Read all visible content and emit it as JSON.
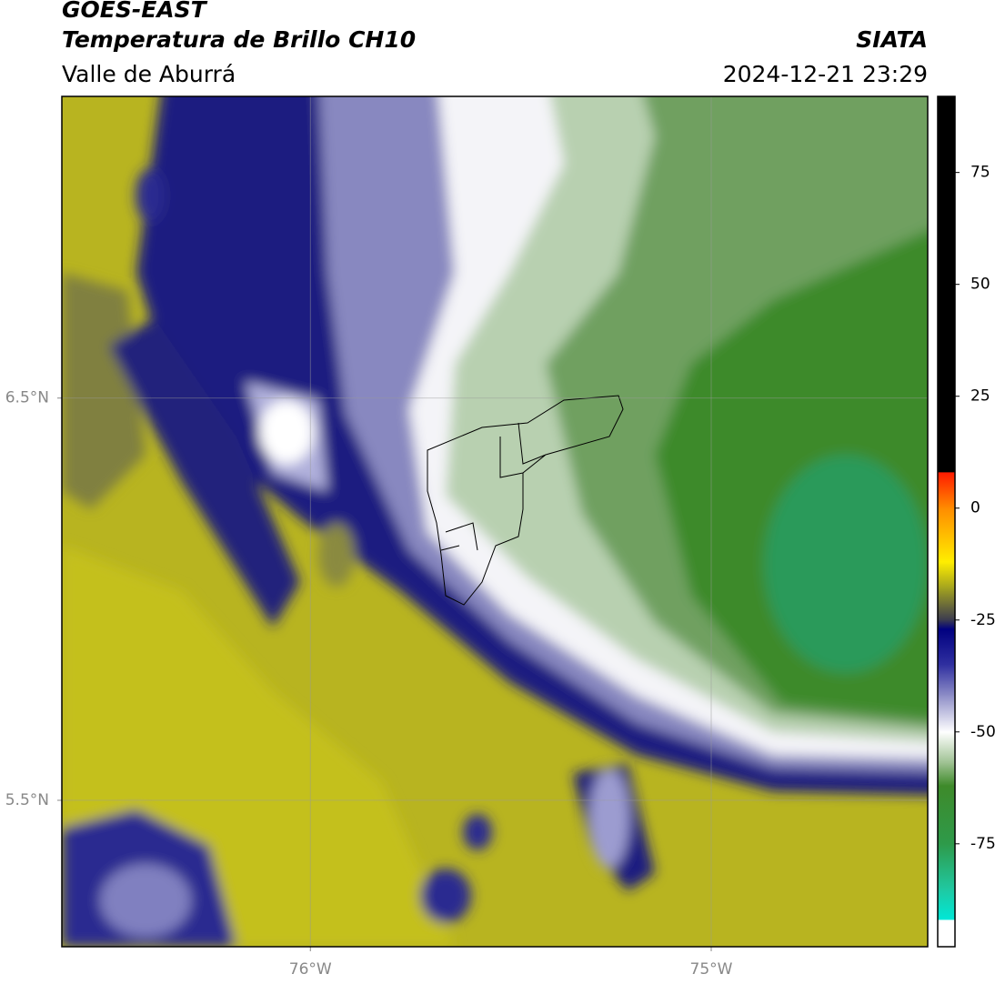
{
  "chart_data": {
    "type": "map",
    "title": "GOES-EAST",
    "subtitle": "Temperatura de Brillo CH10",
    "region": "Valle de Aburrá",
    "source": "SIATA",
    "datetime": "2024-12-21 23:29",
    "xlim": [
      -76.62,
      -74.46
    ],
    "ylim": [
      5.136,
      7.25
    ],
    "xticks": [
      {
        "value": -76,
        "label": "76°W"
      },
      {
        "value": -75,
        "label": "75°W"
      }
    ],
    "yticks": [
      {
        "value": 6.5,
        "label": "6.5°N"
      },
      {
        "value": 5.5,
        "label": "5.5°N"
      }
    ],
    "grid": true,
    "colorbar": {
      "lim": [
        -98,
        92
      ],
      "ticks": [
        75,
        50,
        25,
        0,
        -25,
        -50,
        -75
      ],
      "colormap": [
        {
          "value": 92,
          "color": "#000000"
        },
        {
          "value": 8,
          "color": "#000000"
        },
        {
          "value": 8,
          "color": "#ff1a00"
        },
        {
          "value": 0,
          "color": "#ff8c00"
        },
        {
          "value": -12,
          "color": "#ffee00"
        },
        {
          "value": -18,
          "color": "#a0a020"
        },
        {
          "value": -25,
          "color": "#3a3a50"
        },
        {
          "value": -27,
          "color": "#000080"
        },
        {
          "value": -35,
          "color": "#3030a0"
        },
        {
          "value": -42,
          "color": "#9090c8"
        },
        {
          "value": -50,
          "color": "#ffffff"
        },
        {
          "value": -57,
          "color": "#9cc090"
        },
        {
          "value": -62,
          "color": "#3e8a2a"
        },
        {
          "value": -75,
          "color": "#2e9a4a"
        },
        {
          "value": -85,
          "color": "#20c8a0"
        },
        {
          "value": -92,
          "color": "#00e8d8"
        },
        {
          "value": -92,
          "color": "#ffffff"
        },
        {
          "value": -98,
          "color": "#ffffff"
        }
      ]
    }
  }
}
